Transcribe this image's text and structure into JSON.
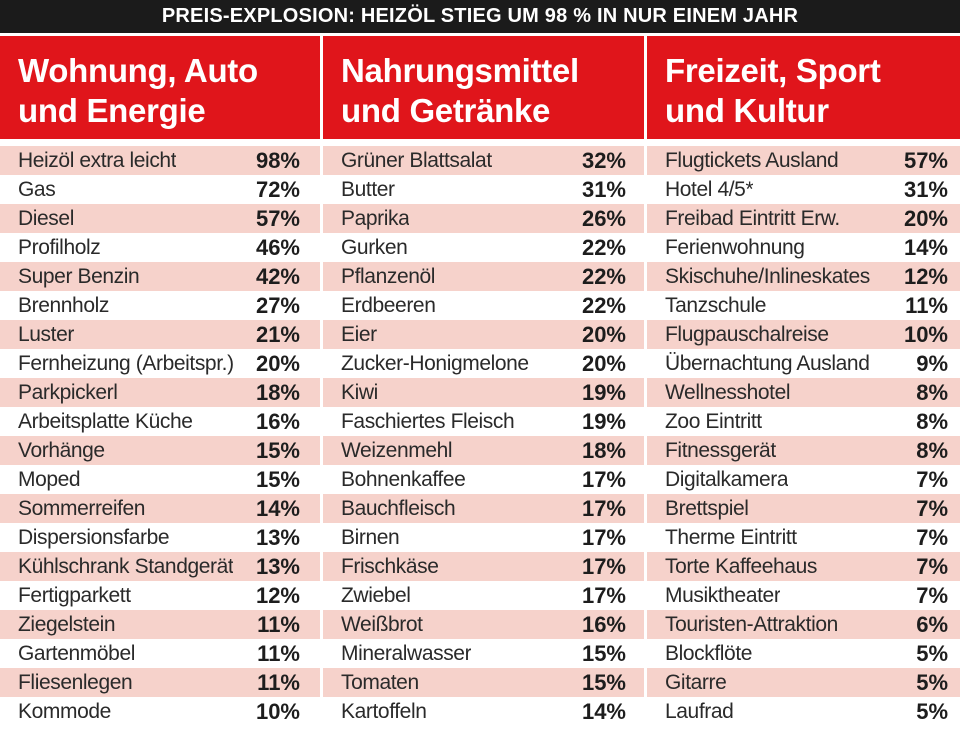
{
  "title": "PREIS-EXPLOSION: HEIZÖL STIEG UM 98 % IN NUR EINEM JAHR",
  "columns": [
    {
      "heading_line1": "Wohnung, Auto",
      "heading_line2": "und Energie",
      "items": [
        {
          "label": "Heizöl extra leicht",
          "value": "98%"
        },
        {
          "label": "Gas",
          "value": "72%"
        },
        {
          "label": "Diesel",
          "value": "57%"
        },
        {
          "label": "Profilholz",
          "value": "46%"
        },
        {
          "label": "Super Benzin",
          "value": "42%"
        },
        {
          "label": "Brennholz",
          "value": "27%"
        },
        {
          "label": "Luster",
          "value": "21%"
        },
        {
          "label": "Fernheizung (Arbeitspr.)",
          "value": "20%"
        },
        {
          "label": "Parkpickerl",
          "value": "18%"
        },
        {
          "label": "Arbeitsplatte Küche",
          "value": "16%"
        },
        {
          "label": "Vorhänge",
          "value": "15%"
        },
        {
          "label": "Moped",
          "value": "15%"
        },
        {
          "label": "Sommerreifen",
          "value": "14%"
        },
        {
          "label": "Dispersionsfarbe",
          "value": "13%"
        },
        {
          "label": "Kühlschrank Standgerät",
          "value": "13%"
        },
        {
          "label": "Fertigparkett",
          "value": "12%"
        },
        {
          "label": "Ziegelstein",
          "value": "11%"
        },
        {
          "label": "Gartenmöbel",
          "value": "11%"
        },
        {
          "label": "Fliesenlegen",
          "value": "11%"
        },
        {
          "label": "Kommode",
          "value": "10%"
        }
      ]
    },
    {
      "heading_line1": "Nahrungsmittel",
      "heading_line2": "und Getränke",
      "items": [
        {
          "label": "Grüner Blattsalat",
          "value": "32%"
        },
        {
          "label": "Butter",
          "value": "31%"
        },
        {
          "label": "Paprika",
          "value": "26%"
        },
        {
          "label": "Gurken",
          "value": "22%"
        },
        {
          "label": "Pflanzenöl",
          "value": "22%"
        },
        {
          "label": "Erdbeeren",
          "value": "22%"
        },
        {
          "label": "Eier",
          "value": "20%"
        },
        {
          "label": "Zucker-Honigmelone",
          "value": "20%"
        },
        {
          "label": "Kiwi",
          "value": "19%"
        },
        {
          "label": "Faschiertes Fleisch",
          "value": "19%"
        },
        {
          "label": "Weizenmehl",
          "value": "18%"
        },
        {
          "label": "Bohnenkaffee",
          "value": "17%"
        },
        {
          "label": "Bauchfleisch",
          "value": "17%"
        },
        {
          "label": "Birnen",
          "value": "17%"
        },
        {
          "label": "Frischkäse",
          "value": "17%"
        },
        {
          "label": "Zwiebel",
          "value": "17%"
        },
        {
          "label": "Weißbrot",
          "value": "16%"
        },
        {
          "label": "Mineralwasser",
          "value": "15%"
        },
        {
          "label": "Tomaten",
          "value": "15%"
        },
        {
          "label": "Kartoffeln",
          "value": "14%"
        }
      ]
    },
    {
      "heading_line1": "Freizeit, Sport",
      "heading_line2": "und Kultur",
      "items": [
        {
          "label": "Flugtickets Ausland",
          "value": "57%"
        },
        {
          "label": "Hotel 4/5*",
          "value": "31%"
        },
        {
          "label": "Freibad Eintritt Erw.",
          "value": "20%"
        },
        {
          "label": "Ferienwohnung",
          "value": "14%"
        },
        {
          "label": "Skischuhe/Inlineskates",
          "value": "12%"
        },
        {
          "label": "Tanzschule",
          "value": "11%"
        },
        {
          "label": "Flugpauschalreise",
          "value": "10%"
        },
        {
          "label": "Übernachtung Ausland",
          "value": "9%"
        },
        {
          "label": "Wellnesshotel",
          "value": "8%"
        },
        {
          "label": "Zoo Eintritt",
          "value": "8%"
        },
        {
          "label": "Fitnessgerät",
          "value": "8%"
        },
        {
          "label": "Digitalkamera",
          "value": "7%"
        },
        {
          "label": "Brettspiel",
          "value": "7%"
        },
        {
          "label": "Therme Eintritt",
          "value": "7%"
        },
        {
          "label": "Torte Kaffeehaus",
          "value": "7%"
        },
        {
          "label": "Musiktheater",
          "value": "7%"
        },
        {
          "label": "Touristen-Attraktion",
          "value": "6%"
        },
        {
          "label": "Blockflöte",
          "value": "5%"
        },
        {
          "label": "Gitarre",
          "value": "5%"
        },
        {
          "label": "Laufrad",
          "value": "5%"
        }
      ]
    }
  ],
  "colors": {
    "header_red": "#e0151b",
    "title_bar": "#1b1b1b",
    "row_stripe": "#f6d2cb"
  }
}
